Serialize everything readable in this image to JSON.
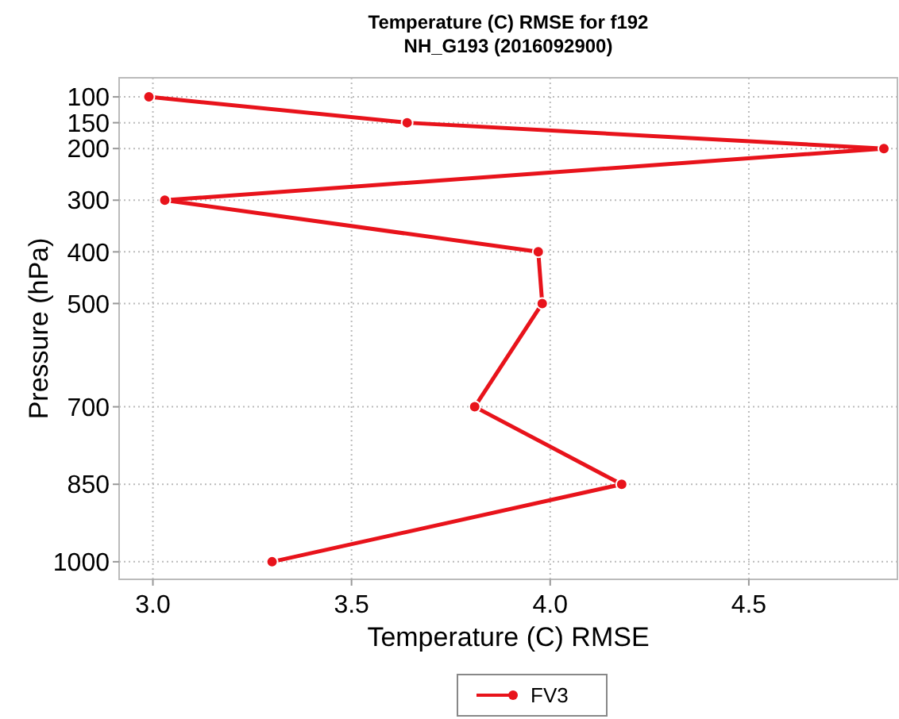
{
  "chart_data": {
    "type": "line",
    "orientation": "horizontal",
    "title": "Temperature (C) RMSE for f192",
    "subtitle": "NH_G193 (2016092900)",
    "xlabel": "Temperature (C) RMSE",
    "ylabel": "Pressure (hPa)",
    "x": [
      100,
      150,
      200,
      300,
      400,
      500,
      700,
      850,
      1000
    ],
    "series": [
      {
        "name": "FV3",
        "color": "#e8131b",
        "values": [
          2.99,
          3.64,
          4.84,
          3.03,
          3.97,
          3.98,
          3.81,
          4.18,
          3.3
        ]
      }
    ],
    "xlim": [
      2.915,
      4.874
    ],
    "xticks": [
      {
        "value": 3,
        "label": "3.0"
      },
      3.5,
      {
        "value": 4,
        "label": "4.0"
      },
      4.5
    ],
    "ylim": [
      1034,
      63
    ],
    "yticks": [
      100,
      150,
      200,
      300,
      400,
      500,
      700,
      850,
      1000
    ],
    "grid": true,
    "legend": "bottom",
    "marker": "circle",
    "line_style": "solid"
  }
}
